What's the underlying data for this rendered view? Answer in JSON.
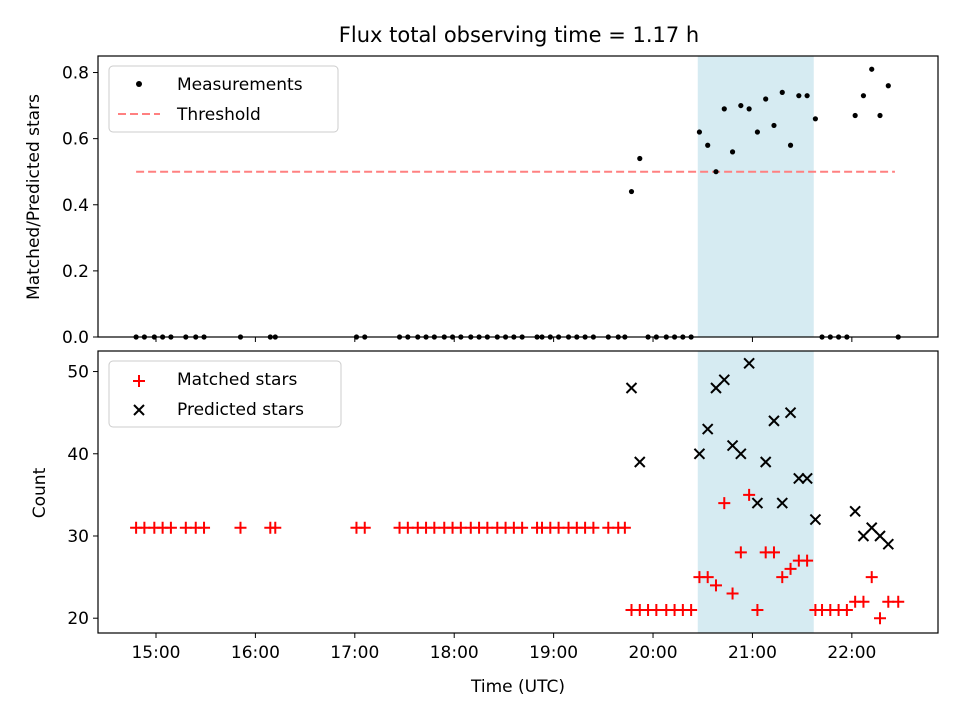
{
  "chart_data": [
    {
      "type": "scatter",
      "title": "Flux total observing time = 1.17 h",
      "xlabel": "",
      "ylabel": "Matched/Predicted stars",
      "xlim": [
        "14:25",
        "22:52"
      ],
      "ylim": [
        0,
        0.85
      ],
      "grid": false,
      "legend_position": "top-left",
      "yticks": [
        "0.0",
        "0.2",
        "0.4",
        "0.6",
        "0.8"
      ],
      "shaded_span": {
        "x_start": "20:27",
        "x_end": "21:37",
        "color": "#add8e6"
      },
      "threshold": {
        "name": "Threshold",
        "y": 0.5,
        "x_start": "14:48",
        "x_end": "22:26",
        "color": "#ff8080",
        "style": "dashed"
      },
      "series": [
        {
          "name": "Measurements",
          "color": "#000000",
          "marker": "dot",
          "x": [
            "14:48",
            "14:53",
            "14:59",
            "15:04",
            "15:09",
            "15:18",
            "15:24",
            "15:29",
            "15:51",
            "16:09",
            "16:12",
            "17:01",
            "17:06",
            "17:27",
            "17:32",
            "17:38",
            "17:43",
            "17:48",
            "17:54",
            "17:59",
            "18:04",
            "18:10",
            "18:15",
            "18:20",
            "18:26",
            "18:31",
            "18:36",
            "18:41",
            "18:50",
            "18:53",
            "18:58",
            "19:03",
            "19:09",
            "19:14",
            "19:19",
            "19:24",
            "19:33",
            "19:39",
            "19:43",
            "19:47",
            "19:52",
            "19:57",
            "20:02",
            "20:08",
            "20:13",
            "20:18",
            "20:23",
            "20:28",
            "20:33",
            "20:38",
            "20:43",
            "20:48",
            "20:53",
            "20:58",
            "21:03",
            "21:08",
            "21:13",
            "21:18",
            "21:23",
            "21:28",
            "21:33",
            "21:38",
            "21:42",
            "21:47",
            "21:52",
            "21:57",
            "22:02",
            "22:07",
            "22:12",
            "22:17",
            "22:22",
            "22:28"
          ],
          "y": [
            0,
            0,
            0,
            0,
            0,
            0,
            0,
            0,
            0,
            0,
            0,
            0,
            0,
            0,
            0,
            0,
            0,
            0,
            0,
            0,
            0,
            0,
            0,
            0,
            0,
            0,
            0,
            0,
            0,
            0,
            0,
            0,
            0,
            0,
            0,
            0,
            0,
            0,
            0,
            0.44,
            0.54,
            0,
            0,
            0,
            0,
            0,
            0,
            0.62,
            0.58,
            0.5,
            0.69,
            0.56,
            0.7,
            0.69,
            0.62,
            0.72,
            0.64,
            0.74,
            0.58,
            0.73,
            0.73,
            0.66,
            0,
            0,
            0,
            0,
            0.67,
            0.73,
            0.81,
            0.67,
            0.76,
            0
          ]
        }
      ]
    },
    {
      "type": "scatter",
      "title": "",
      "xlabel": "Time (UTC)",
      "ylabel": "Count",
      "xlim": [
        "14:25",
        "22:52"
      ],
      "ylim": [
        18.2,
        52.5
      ],
      "grid": false,
      "legend_position": "top-left",
      "xticks": [
        "15:00",
        "16:00",
        "17:00",
        "18:00",
        "19:00",
        "20:00",
        "21:00",
        "22:00"
      ],
      "yticks": [
        "20",
        "30",
        "40",
        "50"
      ],
      "shaded_span": {
        "x_start": "20:27",
        "x_end": "21:37",
        "color": "#add8e6"
      },
      "series": [
        {
          "name": "Matched stars",
          "color": "#ff0000",
          "marker": "plus",
          "x": [
            "14:48",
            "14:53",
            "14:59",
            "15:04",
            "15:09",
            "15:18",
            "15:24",
            "15:29",
            "15:51",
            "16:09",
            "16:12",
            "17:01",
            "17:06",
            "17:27",
            "17:32",
            "17:38",
            "17:43",
            "17:48",
            "17:54",
            "17:59",
            "18:04",
            "18:10",
            "18:15",
            "18:20",
            "18:26",
            "18:31",
            "18:36",
            "18:41",
            "18:50",
            "18:53",
            "18:58",
            "19:03",
            "19:09",
            "19:14",
            "19:19",
            "19:24",
            "19:33",
            "19:39",
            "19:43",
            "19:47",
            "19:52",
            "19:57",
            "20:02",
            "20:08",
            "20:13",
            "20:18",
            "20:23",
            "20:28",
            "20:33",
            "20:38",
            "20:43",
            "20:48",
            "20:53",
            "20:58",
            "21:03",
            "21:08",
            "21:13",
            "21:18",
            "21:23",
            "21:28",
            "21:33",
            "21:38",
            "21:42",
            "21:47",
            "21:52",
            "21:57",
            "22:02",
            "22:07",
            "22:12",
            "22:17",
            "22:22",
            "22:28"
          ],
          "y": [
            31,
            31,
            31,
            31,
            31,
            31,
            31,
            31,
            31,
            31,
            31,
            31,
            31,
            31,
            31,
            31,
            31,
            31,
            31,
            31,
            31,
            31,
            31,
            31,
            31,
            31,
            31,
            31,
            31,
            31,
            31,
            31,
            31,
            31,
            31,
            31,
            31,
            31,
            31,
            21,
            21,
            21,
            21,
            21,
            21,
            21,
            21,
            25,
            25,
            24,
            34,
            23,
            28,
            35,
            21,
            28,
            28,
            25,
            26,
            27,
            27,
            21,
            21,
            21,
            21,
            21,
            22,
            22,
            25,
            20,
            22,
            22
          ]
        },
        {
          "name": "Predicted stars",
          "color": "#000000",
          "marker": "x",
          "x": [
            "19:47",
            "19:52",
            "20:28",
            "20:33",
            "20:38",
            "20:43",
            "20:48",
            "20:53",
            "20:58",
            "21:03",
            "21:08",
            "21:13",
            "21:18",
            "21:23",
            "21:28",
            "21:33",
            "21:38",
            "22:02",
            "22:07",
            "22:12",
            "22:17",
            "22:22"
          ],
          "y": [
            48,
            39,
            40,
            43,
            48,
            49,
            41,
            40,
            51,
            34,
            39,
            44,
            34,
            45,
            37,
            37,
            32,
            33,
            30,
            31,
            30,
            29
          ]
        }
      ]
    }
  ]
}
